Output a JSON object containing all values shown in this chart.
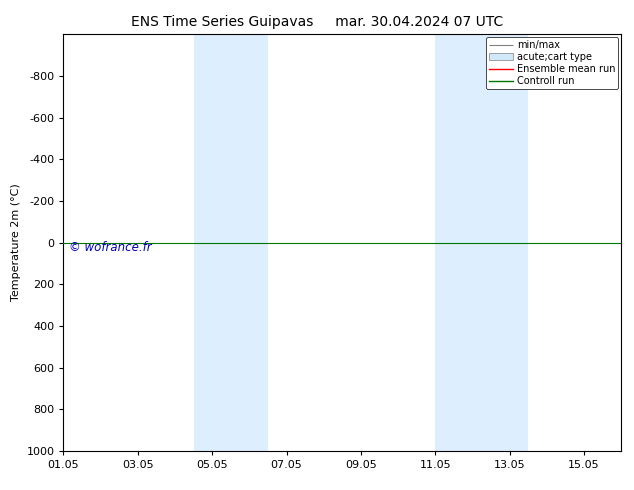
{
  "title_left": "ENS Time Series Guipavas",
  "title_right": "mar. 30.04.2024 07 UTC",
  "ylabel": "Temperature 2m (°C)",
  "ylim_bottom": 1000,
  "ylim_top": -1000,
  "yticks": [
    -800,
    -600,
    -400,
    -200,
    0,
    200,
    400,
    600,
    800,
    1000
  ],
  "xlim": [
    0,
    15
  ],
  "xtick_positions": [
    0,
    2,
    4,
    6,
    8,
    10,
    12,
    14
  ],
  "xtick_labels": [
    "01.05",
    "03.05",
    "05.05",
    "07.05",
    "09.05",
    "11.05",
    "13.05",
    "15.05"
  ],
  "shaded_regions": [
    {
      "start": 3.5,
      "end": 5.5
    },
    {
      "start": 10.0,
      "end": 12.5
    }
  ],
  "shaded_color": "#ddeeff",
  "horizontal_line_y": 0,
  "ensemble_mean_color": "#ff0000",
  "control_run_color": "#007700",
  "watermark_text": "© wofrance.fr",
  "watermark_color": "#0000bb",
  "background_color": "#ffffff",
  "title_fontsize": 10,
  "axis_label_fontsize": 8,
  "tick_fontsize": 8,
  "legend_fontsize": 7
}
